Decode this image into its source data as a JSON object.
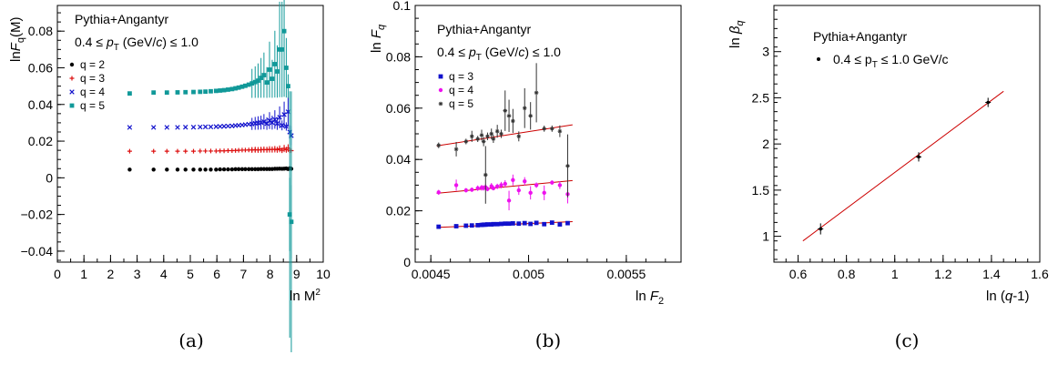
{
  "figure_captions": [
    "(a)",
    "(b)",
    "(c)"
  ],
  "chart_data": [
    {
      "type": "scatter",
      "panel": "a",
      "xlabel_main": "ln M",
      "xlabel_sup": "2",
      "ylabel_pre": "ln",
      "ylabel_F": "F",
      "ylabel_sub": "q",
      "ylabel_post": "(M)",
      "xlim": [
        0,
        10
      ],
      "ylim": [
        -0.046,
        0.094
      ],
      "xticks": [
        "0",
        "1",
        "2",
        "3",
        "4",
        "5",
        "6",
        "7",
        "8",
        "9",
        "10"
      ],
      "yticks": [
        "−0.04",
        "−0.02",
        "0",
        "0.02",
        "0.04",
        "0.06",
        "0.08"
      ],
      "text_line1": "Pythia+Angantyr",
      "text_line2": "0.4 ≤ p_T (GeV/c) ≤ 1.0",
      "legend": [
        "q = 2",
        "q = 3",
        "q = 4",
        "q = 5"
      ],
      "colors": [
        "#000000",
        "#dd1111",
        "#1111cc",
        "#119999"
      ],
      "grid": false,
      "series": [
        {
          "name": "q = 2",
          "base": 0.0045,
          "x": [
            2.72,
            3.62,
            4.12,
            4.52,
            4.82,
            5.12,
            5.37,
            5.57,
            5.77,
            5.97,
            6.12,
            6.27,
            6.42,
            6.57,
            6.7,
            6.82,
            6.95,
            7.07,
            7.2,
            7.32,
            7.44,
            7.55,
            7.66,
            7.77,
            7.88,
            7.98,
            8.08,
            8.18,
            8.27,
            8.36,
            8.45,
            8.53,
            8.61,
            8.68,
            8.74,
            8.8
          ],
          "y": [
            0.0045,
            0.0045,
            0.0045,
            0.0045,
            0.0045,
            0.0045,
            0.0045,
            0.0045,
            0.0045,
            0.0045,
            0.0046,
            0.0046,
            0.0046,
            0.0046,
            0.0047,
            0.0047,
            0.0047,
            0.0047,
            0.0047,
            0.0047,
            0.0047,
            0.0047,
            0.0048,
            0.0048,
            0.0048,
            0.0048,
            0.0048,
            0.0049,
            0.0049,
            0.005,
            0.0049,
            0.005,
            0.0051,
            0.0048,
            0.0052,
            0.0049
          ]
        },
        {
          "name": "q = 3",
          "base": 0.0145,
          "x": [
            2.72,
            3.62,
            4.12,
            4.52,
            4.82,
            5.12,
            5.37,
            5.57,
            5.77,
            5.97,
            6.12,
            6.27,
            6.42,
            6.57,
            6.7,
            6.82,
            6.95,
            7.07,
            7.2,
            7.32,
            7.44,
            7.55,
            7.66,
            7.77,
            7.88,
            7.98,
            8.08,
            8.18,
            8.27,
            8.36,
            8.45,
            8.53,
            8.61,
            8.68,
            8.74,
            8.8
          ],
          "y": [
            0.0145,
            0.0145,
            0.0145,
            0.0145,
            0.0145,
            0.0145,
            0.0146,
            0.0146,
            0.0146,
            0.0146,
            0.0147,
            0.0147,
            0.0148,
            0.0148,
            0.0149,
            0.015,
            0.0151,
            0.0151,
            0.0152,
            0.0152,
            0.0153,
            0.0152,
            0.0153,
            0.0154,
            0.0153,
            0.0155,
            0.0154,
            0.0156,
            0.0153,
            0.0158,
            0.015,
            0.016,
            0.0153,
            0.0162,
            0.0149,
            0.0148
          ]
        },
        {
          "name": "q = 4",
          "base": 0.0275,
          "x": [
            2.72,
            3.62,
            4.12,
            4.52,
            4.82,
            5.12,
            5.37,
            5.57,
            5.77,
            5.97,
            6.12,
            6.27,
            6.42,
            6.57,
            6.7,
            6.82,
            6.95,
            7.07,
            7.2,
            7.32,
            7.44,
            7.55,
            7.66,
            7.77,
            7.88,
            7.98,
            8.08,
            8.18,
            8.27,
            8.36,
            8.45,
            8.53,
            8.61,
            8.68,
            8.74,
            8.8
          ],
          "y": [
            0.0275,
            0.0275,
            0.0275,
            0.0275,
            0.0276,
            0.0276,
            0.0277,
            0.0278,
            0.0278,
            0.0279,
            0.028,
            0.0281,
            0.0282,
            0.0283,
            0.0285,
            0.0286,
            0.0288,
            0.029,
            0.0292,
            0.0294,
            0.0297,
            0.0299,
            0.0301,
            0.0306,
            0.0296,
            0.0312,
            0.0301,
            0.0318,
            0.0296,
            0.033,
            0.0286,
            0.0345,
            0.028,
            0.036,
            0.025,
            0.023
          ]
        },
        {
          "name": "q = 5",
          "base": 0.046,
          "x": [
            2.72,
            3.62,
            4.12,
            4.52,
            4.82,
            5.12,
            5.37,
            5.57,
            5.77,
            5.97,
            6.12,
            6.27,
            6.42,
            6.57,
            6.7,
            6.82,
            6.95,
            7.07,
            7.2,
            7.32,
            7.44,
            7.55,
            7.66,
            7.77,
            7.88,
            7.98,
            8.08,
            8.18,
            8.27,
            8.36,
            8.45,
            8.53,
            8.61,
            8.68,
            8.74,
            8.8
          ],
          "y": [
            0.046,
            0.0465,
            0.0465,
            0.0466,
            0.0467,
            0.0468,
            0.0469,
            0.047,
            0.0472,
            0.0474,
            0.0476,
            0.0478,
            0.0481,
            0.0484,
            0.0488,
            0.0492,
            0.0497,
            0.0502,
            0.0508,
            0.0515,
            0.0522,
            0.053,
            0.0545,
            0.056,
            0.052,
            0.059,
            0.054,
            0.062,
            0.058,
            0.07,
            0.07,
            0.08,
            0.06,
            0.05,
            -0.02,
            -0.024
          ]
        }
      ]
    },
    {
      "type": "scatter",
      "panel": "b",
      "ylabel_pre": "ln",
      "ylabel_F": "F",
      "ylabel_sub": "q",
      "xlabel_pre": "ln",
      "xlabel_F": "F",
      "xlabel_sub": "2",
      "xlim": [
        0.00442,
        0.00578
      ],
      "ylim": [
        0,
        0.1
      ],
      "xticks": [
        "0.0045",
        "0.005",
        "0.0055"
      ],
      "yticks": [
        "0",
        "0.02",
        "0.04",
        "0.06",
        "0.08",
        "0.1"
      ],
      "text_line1": "Pythia+Angantyr",
      "text_line2": "0.4 ≤ p_T (GeV/c) ≤ 1.0",
      "legend": [
        "q = 3",
        "q = 4",
        "q = 5"
      ],
      "colors": [
        "#1111cc",
        "#ee11ee",
        "#333333"
      ],
      "fit_color": "#cc0000",
      "grid": false,
      "series": [
        {
          "name": "q = 3",
          "x": [
            0.00454,
            0.00463,
            0.00468,
            0.00471,
            0.00474,
            0.00476,
            0.00477,
            0.00478,
            0.00479,
            0.00481,
            0.00482,
            0.00484,
            0.00486,
            0.00488,
            0.0049,
            0.00492,
            0.00495,
            0.00498,
            0.00501,
            0.00504,
            0.00508,
            0.00512,
            0.00516,
            0.0052
          ],
          "y": [
            0.0138,
            0.014,
            0.0142,
            0.0143,
            0.0144,
            0.0145,
            0.0146,
            0.0146,
            0.0147,
            0.0147,
            0.0148,
            0.0148,
            0.0149,
            0.015,
            0.015,
            0.0151,
            0.015,
            0.0152,
            0.0149,
            0.0153,
            0.0148,
            0.0154,
            0.0147,
            0.0152
          ],
          "fit": [
            0.0135,
            0.0158
          ]
        },
        {
          "name": "q = 4",
          "x": [
            0.00454,
            0.00463,
            0.00468,
            0.00471,
            0.00474,
            0.00476,
            0.00477,
            0.00478,
            0.00479,
            0.00481,
            0.00482,
            0.00484,
            0.00486,
            0.00488,
            0.0049,
            0.00492,
            0.00495,
            0.00498,
            0.00501,
            0.00504,
            0.00508,
            0.00512,
            0.00516,
            0.0052
          ],
          "y": [
            0.0272,
            0.03,
            0.028,
            0.0282,
            0.0288,
            0.029,
            0.0289,
            0.0292,
            0.0285,
            0.0296,
            0.0288,
            0.0295,
            0.03,
            0.0305,
            0.024,
            0.032,
            0.028,
            0.0315,
            0.027,
            0.03,
            0.027,
            0.031,
            0.03,
            0.0265
          ],
          "fit": [
            0.0268,
            0.0318
          ]
        },
        {
          "name": "q = 5",
          "x": [
            0.00454,
            0.00463,
            0.00468,
            0.00471,
            0.00474,
            0.00476,
            0.00477,
            0.00478,
            0.00479,
            0.00481,
            0.00482,
            0.00484,
            0.00486,
            0.00488,
            0.0049,
            0.00492,
            0.00495,
            0.00498,
            0.00501,
            0.00504,
            0.00508,
            0.00512,
            0.00516,
            0.0052
          ],
          "y": [
            0.0455,
            0.044,
            0.047,
            0.049,
            0.048,
            0.0495,
            0.047,
            0.034,
            0.049,
            0.05,
            0.048,
            0.051,
            0.05,
            0.059,
            0.057,
            0.055,
            0.049,
            0.06,
            0.057,
            0.066,
            0.052,
            0.052,
            0.051,
            0.0375
          ],
          "fit": [
            0.0453,
            0.0535
          ]
        }
      ]
    },
    {
      "type": "line",
      "panel": "c",
      "ylabel_pre": "ln",
      "ylabel_beta": "β",
      "ylabel_sub": "q",
      "xlabel": "ln (q-1)",
      "xlim": [
        0.5,
        1.6
      ],
      "ylim": [
        0.72,
        3.5
      ],
      "xticks": [
        "0.6",
        "0.8",
        "1",
        "1.2",
        "1.4",
        "1.6"
      ],
      "yticks": [
        "1",
        "1.5",
        "2",
        "2.5",
        "3"
      ],
      "text_line1": "Pythia+Angantyr",
      "legend": [
        "0.4 ≤ p_T ≤ 1.0 GeV/c"
      ],
      "fit_color": "#cc0000",
      "grid": false,
      "points": {
        "x": [
          0.693,
          1.099,
          1.386
        ],
        "y": [
          1.08,
          1.86,
          2.45
        ],
        "err": [
          0.06,
          0.05,
          0.05
        ]
      },
      "fit": {
        "x": [
          0.62,
          1.45
        ],
        "y": [
          0.95,
          2.57
        ]
      }
    }
  ]
}
